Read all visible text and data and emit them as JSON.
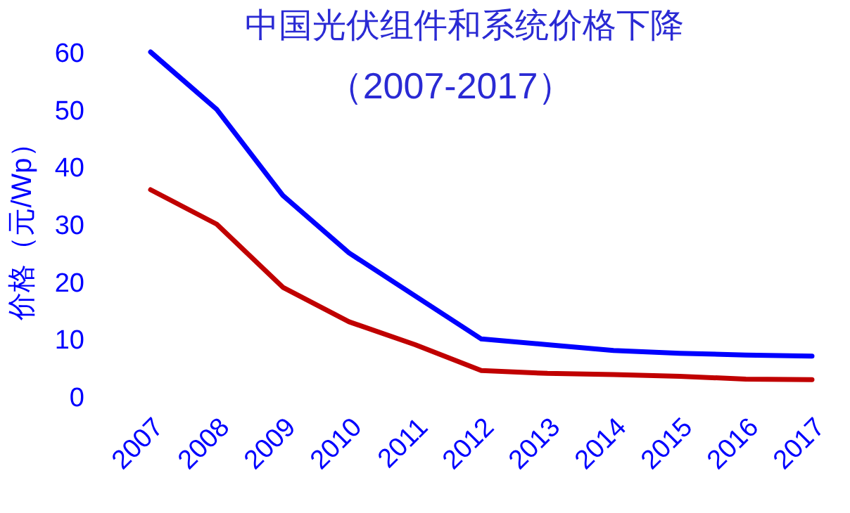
{
  "chart_data": {
    "type": "line",
    "title": "中国光伏组件和系统价格下降",
    "subtitle": "（2007-2017）",
    "ylabel": "价格（元/Wp）",
    "categories": [
      "2007",
      "2008",
      "2009",
      "2010",
      "2011",
      "2012",
      "2013",
      "2014",
      "2015",
      "2016",
      "2017"
    ],
    "series": [
      {
        "color": "#0000ff",
        "values": [
          60,
          50,
          35,
          25,
          17.5,
          10,
          9,
          8,
          7.5,
          7.2,
          7
        ]
      },
      {
        "color": "#c00000",
        "values": [
          36,
          30,
          19,
          13,
          9,
          4.5,
          4,
          3.8,
          3.5,
          3,
          2.9
        ]
      }
    ],
    "ylim": [
      0,
      60
    ],
    "yticks": [
      0,
      10,
      20,
      30,
      40,
      50,
      60
    ],
    "grid": false,
    "marker": "none",
    "line_style": "solid"
  }
}
